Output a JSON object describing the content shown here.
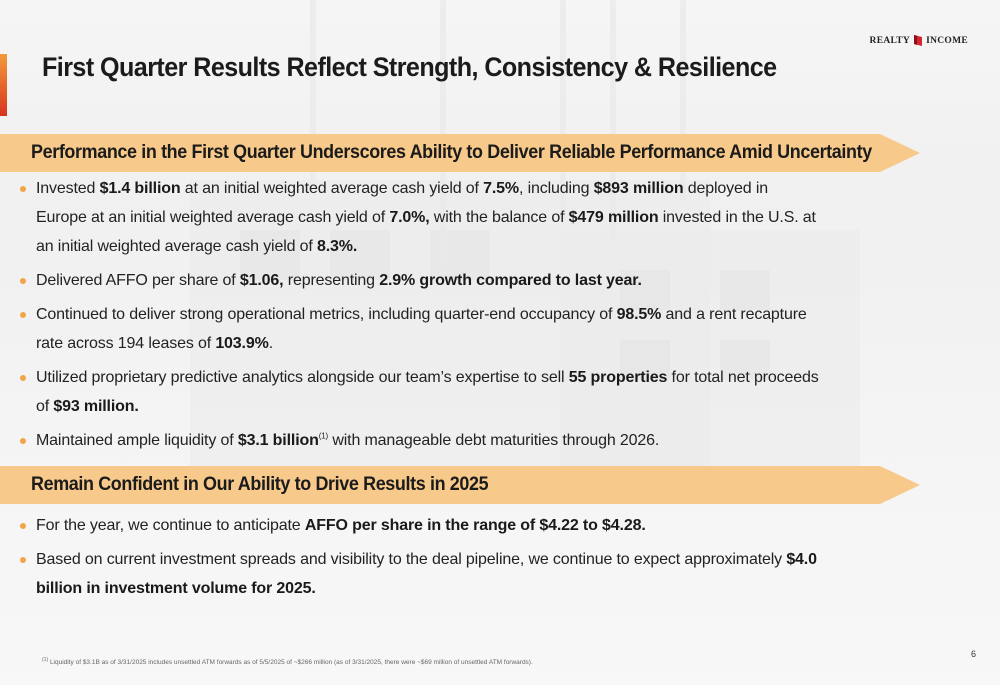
{
  "header": {
    "title": "First Quarter Results Reflect Strength, Consistency & Resilience",
    "logo_left": "REALTY",
    "logo_right": "INCOME"
  },
  "section1": {
    "heading": "Performance in the First Quarter Underscores Ability to Deliver Reliable Performance Amid Uncertainty",
    "bullets": [
      {
        "p1": "Invested ",
        "b1": "$1.4 billion",
        "p2": " at an initial weighted average cash yield of ",
        "b2": "7.5%",
        "p3": ", including ",
        "b3": "$893 million",
        "p4": " deployed in Europe at an initial weighted average cash yield of ",
        "b4": "7.0%,",
        "p5": " with the balance of ",
        "b5": "$479 million",
        "p6": " invested in the U.S. at an initial weighted average cash yield of ",
        "b6": "8.3%."
      },
      {
        "p1": "Delivered AFFO per share of ",
        "b1": "$1.06,",
        "p2": " representing ",
        "b2": "2.9% growth compared to last year."
      },
      {
        "p1": "Continued to deliver strong operational metrics, including quarter-end occupancy of ",
        "b1": "98.5%",
        "p2": " and a rent recapture rate across 194 leases of ",
        "b2": "103.9%",
        "p3": "."
      },
      {
        "p1": "Utilized proprietary predictive analytics alongside our team’s expertise to sell ",
        "b1": "55 properties",
        "p2": " for total net proceeds of ",
        "b2": "$93 million."
      },
      {
        "p1": "Maintained ample liquidity of ",
        "b1": "$3.1 billion",
        "sup": "(1)",
        "p2": " with manageable debt maturities through 2026."
      }
    ]
  },
  "section2": {
    "heading": "Remain Confident in Our Ability to Drive Results in 2025",
    "bullets": [
      {
        "p1": "For the year, we continue to anticipate ",
        "b1": "AFFO per share in the range of $4.22 to $4.28."
      },
      {
        "p1": "Based on current investment spreads and visibility to the deal pipeline, we continue to expect approximately ",
        "b1": "$4.0 billion in investment volume for 2025."
      }
    ]
  },
  "footnote": {
    "marker": "(1)",
    "text": "Liquidity of $3.1B as of 3/31/2025 includes unsettled ATM forwards as of 5/5/2025 of ~$266 million (as of 3/31/2025, there were ~$69 million of unsettled ATM forwards)."
  },
  "page_number": "6",
  "colors": {
    "banner": "#f7c98a",
    "bullet": "#f0a646",
    "accent_top": "#f39a3a",
    "accent_bottom": "#d8341f",
    "logo_red": "#d22630"
  }
}
